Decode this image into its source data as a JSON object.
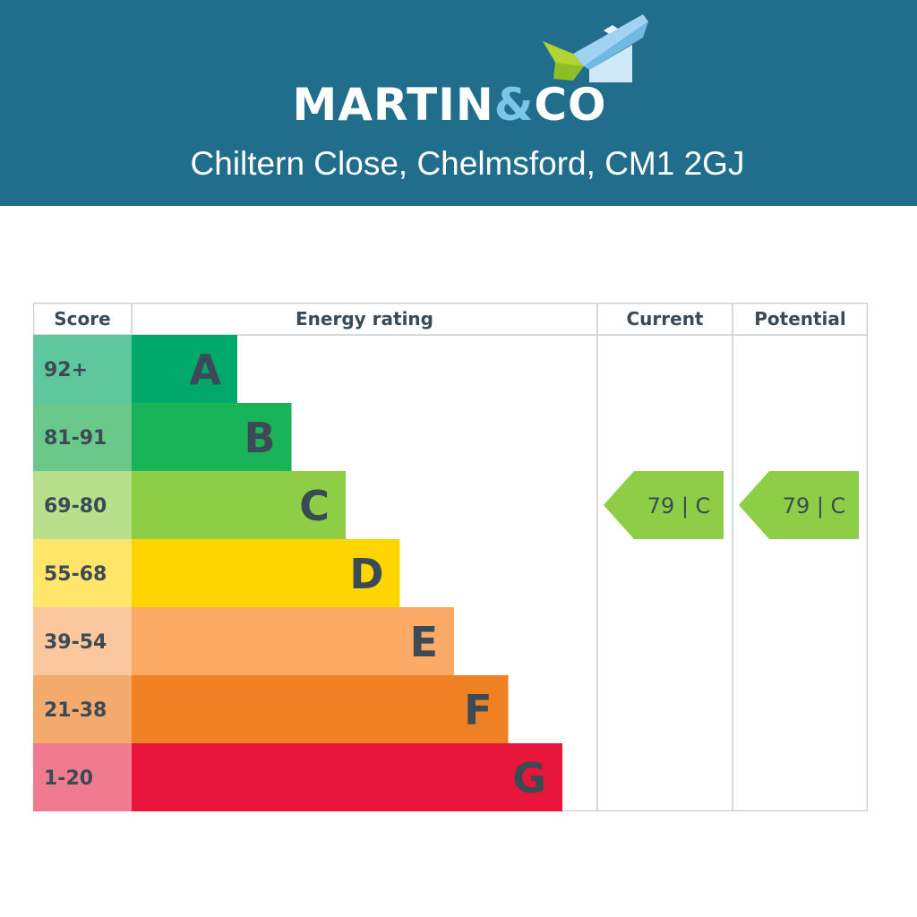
{
  "header": {
    "brand_prefix": "MARTIN",
    "brand_amp": "&",
    "brand_suffix": "CO",
    "address": "Chiltern Close, Chelmsford, CM1 2GJ",
    "logo_icon": "house-roof-icon",
    "background_color": "#206d8c"
  },
  "chart_data": {
    "type": "bar",
    "columns": [
      "Score",
      "Energy rating",
      "Current",
      "Potential"
    ],
    "bands": [
      {
        "letter": "A",
        "score": "92+",
        "color": "#00a86b",
        "score_bg": "#5fc79e"
      },
      {
        "letter": "B",
        "score": "81-91",
        "color": "#19b459",
        "score_bg": "#6ac88b"
      },
      {
        "letter": "C",
        "score": "69-80",
        "color": "#8dce46",
        "score_bg": "#b8df8c"
      },
      {
        "letter": "D",
        "score": "55-68",
        "color": "#ffd500",
        "score_bg": "#ffe56a"
      },
      {
        "letter": "E",
        "score": "39-54",
        "color": "#fcaa65",
        "score_bg": "#fcc79c"
      },
      {
        "letter": "F",
        "score": "21-38",
        "color": "#ef8023",
        "score_bg": "#f4aa6c"
      },
      {
        "letter": "G",
        "score": "1-20",
        "color": "#e9153b",
        "score_bg": "#f07a90"
      }
    ],
    "current": {
      "value": 79,
      "band": "C",
      "label": "79 | C"
    },
    "potential": {
      "value": 79,
      "band": "C",
      "label": "79 | C"
    }
  }
}
